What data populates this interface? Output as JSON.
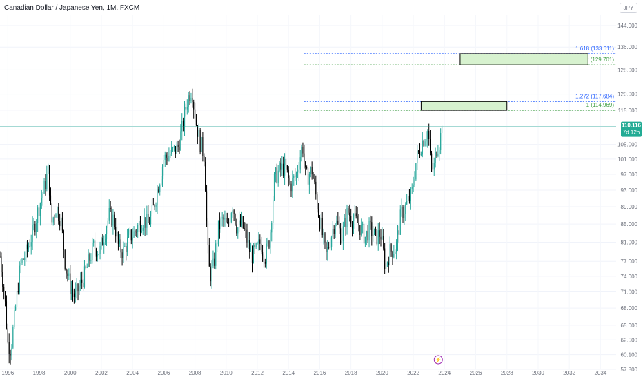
{
  "header": {
    "symbol_title": "Canadian Dollar / Japanese Yen, 1M, FXCM",
    "currency_button": "JPY"
  },
  "price_tag": {
    "price": "110.116",
    "countdown": "7d 12h",
    "color": "#22ab94"
  },
  "colors": {
    "up": "#26a69a",
    "down": "#000000",
    "blue_level": "#2962ff",
    "green_level": "#43a047",
    "zone_fill": "#d7f2cf"
  },
  "chart_data": {
    "type": "candlestick",
    "title": "Canadian Dollar / Japanese Yen, 1M, FXCM",
    "y_axis": {
      "scale": "log",
      "range": [
        57.8,
        148
      ],
      "ticks": [
        57.8,
        60.1,
        62.5,
        65.0,
        68.0,
        71.0,
        74.0,
        77.0,
        81.0,
        85.0,
        89.0,
        93.0,
        97.0,
        101.0,
        105.0,
        110.116,
        115.0,
        120.0,
        128.0,
        136.0,
        144.0
      ],
      "tick_labels": [
        "57.800",
        "60.100",
        "62.500",
        "65.000",
        "68.000",
        "71.000",
        "74.000",
        "77.000",
        "81.000",
        "85.000",
        "89.000",
        "93.000",
        "97.000",
        "101.000",
        "105.000",
        "",
        "115.000",
        "120.000",
        "128.000",
        "136.000",
        "144.000"
      ]
    },
    "x_axis": {
      "range": [
        1995.5,
        2035.0
      ],
      "ticks": [
        1996,
        1998,
        2000,
        2002,
        2004,
        2006,
        2008,
        2010,
        2012,
        2014,
        2016,
        2018,
        2020,
        2022,
        2024,
        2026,
        2028,
        2030,
        2032,
        2034
      ],
      "tick_labels": [
        "1996",
        "1998",
        "2000",
        "2002",
        "2004",
        "2006",
        "2008",
        "2010",
        "2012",
        "2014",
        "2016",
        "2018",
        "2020",
        "2022",
        "2024",
        "2026",
        "2028",
        "2030",
        "2032",
        "2034"
      ]
    },
    "grid": true,
    "price_path": [
      [
        1995.5,
        78
      ],
      [
        1995.8,
        70
      ],
      [
        1996.0,
        62
      ],
      [
        1996.2,
        61
      ],
      [
        1996.5,
        68
      ],
      [
        1996.8,
        76
      ],
      [
        1997.2,
        79
      ],
      [
        1997.6,
        83
      ],
      [
        1998.0,
        89
      ],
      [
        1998.3,
        93
      ],
      [
        1998.6,
        98
      ],
      [
        1998.8,
        85
      ],
      [
        1999.1,
        89
      ],
      [
        1999.4,
        86
      ],
      [
        1999.7,
        76
      ],
      [
        2000.0,
        72
      ],
      [
        2000.3,
        70
      ],
      [
        2000.6,
        72
      ],
      [
        2000.9,
        74
      ],
      [
        2001.2,
        77
      ],
      [
        2001.5,
        80
      ],
      [
        2001.9,
        79
      ],
      [
        2002.2,
        83
      ],
      [
        2002.5,
        87
      ],
      [
        2002.8,
        86
      ],
      [
        2003.1,
        80
      ],
      [
        2003.4,
        79
      ],
      [
        2003.8,
        82
      ],
      [
        2004.1,
        83
      ],
      [
        2004.4,
        85
      ],
      [
        2004.7,
        86
      ],
      [
        2005.0,
        85
      ],
      [
        2005.3,
        88
      ],
      [
        2005.7,
        95
      ],
      [
        2006.0,
        101
      ],
      [
        2006.3,
        102
      ],
      [
        2006.6,
        103
      ],
      [
        2006.9,
        104
      ],
      [
        2007.2,
        110
      ],
      [
        2007.5,
        118
      ],
      [
        2007.8,
        122
      ],
      [
        2008.0,
        113
      ],
      [
        2008.3,
        106
      ],
      [
        2008.6,
        102
      ],
      [
        2008.8,
        80
      ],
      [
        2008.95,
        74
      ],
      [
        2009.2,
        76
      ],
      [
        2009.5,
        84
      ],
      [
        2009.8,
        86
      ],
      [
        2010.1,
        84
      ],
      [
        2010.4,
        90
      ],
      [
        2010.7,
        84
      ],
      [
        2011.0,
        85
      ],
      [
        2011.3,
        82
      ],
      [
        2011.6,
        78
      ],
      [
        2011.9,
        79
      ],
      [
        2012.2,
        81
      ],
      [
        2012.5,
        78
      ],
      [
        2012.8,
        82
      ],
      [
        2013.1,
        96
      ],
      [
        2013.4,
        98
      ],
      [
        2013.8,
        99
      ],
      [
        2014.1,
        94
      ],
      [
        2014.5,
        97
      ],
      [
        2014.9,
        105
      ],
      [
        2015.1,
        96
      ],
      [
        2015.5,
        98
      ],
      [
        2015.9,
        88
      ],
      [
        2016.1,
        84
      ],
      [
        2016.4,
        78
      ],
      [
        2016.7,
        82
      ],
      [
        2017.0,
        86
      ],
      [
        2017.4,
        82
      ],
      [
        2017.8,
        88
      ],
      [
        2018.1,
        86
      ],
      [
        2018.5,
        85
      ],
      [
        2018.9,
        82
      ],
      [
        2019.2,
        84
      ],
      [
        2019.6,
        82
      ],
      [
        2019.9,
        83
      ],
      [
        2020.2,
        76
      ],
      [
        2020.5,
        79
      ],
      [
        2020.9,
        80
      ],
      [
        2021.2,
        87
      ],
      [
        2021.5,
        89
      ],
      [
        2021.9,
        92
      ],
      [
        2022.2,
        101
      ],
      [
        2022.6,
        106
      ],
      [
        2022.8,
        108
      ],
      [
        2022.95,
        109
      ],
      [
        2023.1,
        100
      ],
      [
        2023.3,
        98
      ],
      [
        2023.5,
        104
      ],
      [
        2023.7,
        106
      ],
      [
        2023.85,
        110.116
      ]
    ],
    "levels": [
      {
        "label": "1.618 (133.611)",
        "value": 133.611,
        "color": "#2962ff",
        "x_start": 2015.0
      },
      {
        "label": "1.272 (129.701)",
        "value": 129.701,
        "color": "#43a047",
        "x_start": 2015.0
      },
      {
        "label": "1.272 (117.684)",
        "value": 117.684,
        "color": "#2962ff",
        "x_start": 2015.0
      },
      {
        "label": "1 (114.969)",
        "value": 114.969,
        "color": "#43a047",
        "x_start": 2015.0
      }
    ],
    "zones": [
      {
        "x_from": 2025.0,
        "x_to": 2033.2,
        "y_low": 129.701,
        "y_high": 133.611
      },
      {
        "x_from": 2022.5,
        "x_to": 2028.0,
        "y_low": 114.969,
        "y_high": 117.684
      }
    ],
    "current_price_line": 110.116,
    "annotation_marker": {
      "x": 2023.6,
      "symbol": "⚡"
    }
  }
}
